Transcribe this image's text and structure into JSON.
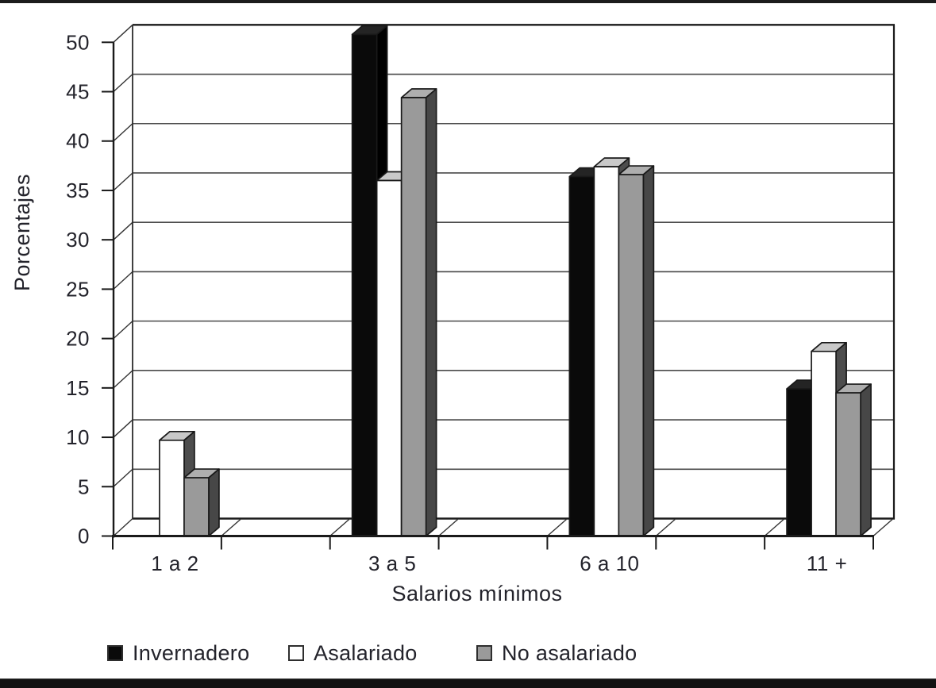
{
  "figure": {
    "kind": "3d-clustered-column-chart",
    "background": "#ffffff",
    "top_rule_color": "#1c1c1c",
    "bottom_rule_color": "#121212"
  },
  "chart_data": {
    "type": "bar",
    "variant": "3d-column",
    "categories": [
      "1 a 2",
      "3 a 5",
      "6 a 10",
      "11 +"
    ],
    "series": [
      {
        "name": "Invernadero",
        "color": "#0a0a0a",
        "values": [
          0,
          50.8,
          36.4,
          14.9
        ]
      },
      {
        "name": "Asalariado",
        "color": "#ffffff",
        "values": [
          9.7,
          36.0,
          37.4,
          18.7
        ]
      },
      {
        "name": "No asalariado",
        "color": "#9a9a9a",
        "values": [
          5.9,
          44.4,
          36.6,
          14.5
        ]
      }
    ],
    "xlabel": "Salarios mínimos",
    "ylabel": "Porcentajes",
    "ylim": [
      0,
      50
    ],
    "ytick_step": 5,
    "ytick_labels": [
      "0",
      "5",
      "10",
      "15",
      "20",
      "25",
      "30",
      "35",
      "40",
      "45",
      "50"
    ],
    "grid": true,
    "gridline_color": "#4a4a4a",
    "axis_color": "#1a1a1a",
    "text_color": "#23232b",
    "legend_position": "bottom"
  }
}
